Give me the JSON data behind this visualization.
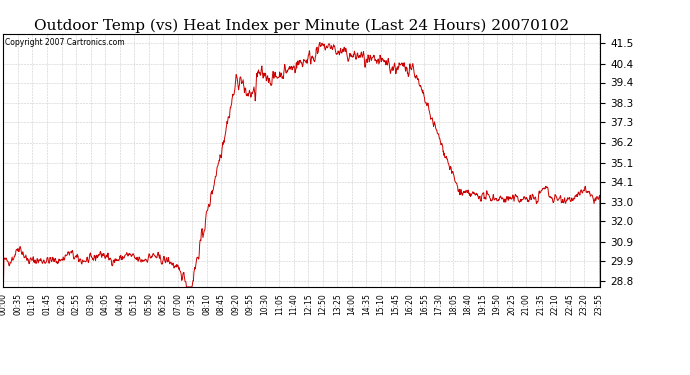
{
  "title": "Outdoor Temp (vs) Heat Index per Minute (Last 24 Hours) 20070102",
  "copyright": "Copyright 2007 Cartronics.com",
  "line_color": "#cc0000",
  "bg_color": "#ffffff",
  "plot_bg_color": "#ffffff",
  "grid_color": "#cccccc",
  "yticks": [
    28.8,
    29.9,
    30.9,
    32.0,
    33.0,
    34.1,
    35.1,
    36.2,
    37.3,
    38.3,
    39.4,
    40.4,
    41.5
  ],
  "ylim": [
    28.5,
    42.0
  ],
  "xlabel_fontsize": 5.5,
  "ylabel_fontsize": 7.5,
  "title_fontsize": 11
}
